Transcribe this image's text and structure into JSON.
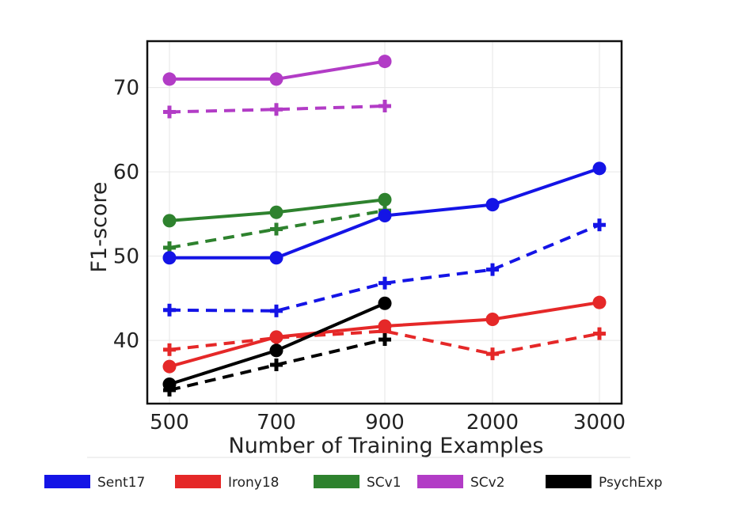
{
  "chart_data": {
    "type": "line",
    "title": "",
    "xlabel": "Number of Training Examples",
    "ylabel": "F1-score",
    "categories": [
      "500",
      "700",
      "900",
      "2000",
      "3000"
    ],
    "ylim": [
      32.5,
      75.5
    ],
    "yticks": [
      40,
      50,
      60,
      70
    ],
    "grid": true,
    "legend_position": "bottom",
    "legend_entries": [
      {
        "name": "Sent17",
        "color": "#1414e6"
      },
      {
        "name": "Irony18",
        "color": "#e52828"
      },
      {
        "name": "SCv1",
        "color": "#2e822e"
      },
      {
        "name": "SCv2",
        "color": "#b23cc6"
      },
      {
        "name": "PsychExp",
        "color": "#000000"
      }
    ],
    "series": [
      {
        "dataset": "Sent17",
        "style": "solid",
        "marker": "circle",
        "color": "#1414e6",
        "values": [
          49.8,
          49.8,
          54.8,
          56.1,
          60.4
        ]
      },
      {
        "dataset": "Sent17",
        "style": "dashed",
        "marker": "plus",
        "color": "#1414e6",
        "values": [
          43.6,
          43.5,
          46.8,
          48.4,
          53.7
        ]
      },
      {
        "dataset": "Irony18",
        "style": "solid",
        "marker": "circle",
        "color": "#e52828",
        "values": [
          36.9,
          40.4,
          41.7,
          42.5,
          44.5
        ]
      },
      {
        "dataset": "Irony18",
        "style": "dashed",
        "marker": "plus",
        "color": "#e52828",
        "values": [
          38.9,
          40.3,
          41.1,
          38.4,
          40.8
        ]
      },
      {
        "dataset": "SCv1",
        "style": "solid",
        "marker": "circle",
        "color": "#2e822e",
        "values": [
          54.2,
          55.2,
          56.7,
          null,
          null
        ]
      },
      {
        "dataset": "SCv1",
        "style": "dashed",
        "marker": "plus",
        "color": "#2e822e",
        "values": [
          51.0,
          53.2,
          55.4,
          null,
          null
        ]
      },
      {
        "dataset": "SCv2",
        "style": "solid",
        "marker": "circle",
        "color": "#b23cc6",
        "values": [
          71.0,
          71.0,
          73.1,
          null,
          null
        ]
      },
      {
        "dataset": "SCv2",
        "style": "dashed",
        "marker": "plus",
        "color": "#b23cc6",
        "values": [
          67.1,
          67.4,
          67.8,
          null,
          null
        ]
      },
      {
        "dataset": "PsychExp",
        "style": "solid",
        "marker": "circle",
        "color": "#000000",
        "values": [
          34.8,
          38.8,
          44.4,
          null,
          null
        ]
      },
      {
        "dataset": "PsychExp",
        "style": "dashed",
        "marker": "plus",
        "color": "#000000",
        "values": [
          34.1,
          37.1,
          40.1,
          null,
          null
        ]
      }
    ]
  }
}
